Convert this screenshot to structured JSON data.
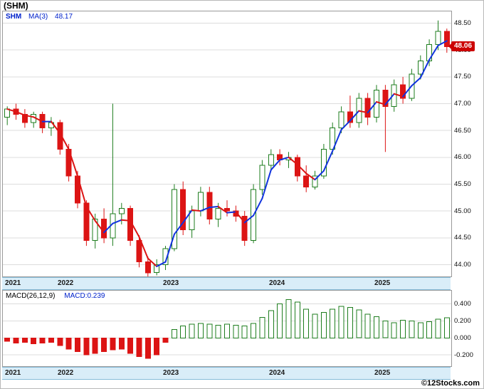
{
  "chart_data": {
    "type": "candlestick",
    "title": "(SHM)",
    "symbol": "SHM",
    "watermark": "©12Stocks.com",
    "x": {
      "interval": "month",
      "start": "2021-07",
      "years": [
        "2021",
        "2022",
        "2023",
        "2024",
        "2025"
      ],
      "year_start_indices": [
        0,
        6,
        18,
        30,
        42
      ]
    },
    "price_panel": {
      "legend": {
        "symbol": "SHM",
        "ma_label": "MA(3)",
        "ma_value": "48.17"
      },
      "price_tag": "48.06",
      "last_price": 48.06,
      "ma_window": 3,
      "y_ticks": [
        "48.50",
        "48.00",
        "47.50",
        "47.00",
        "46.50",
        "46.00",
        "45.50",
        "45.00",
        "44.50",
        "44.00"
      ],
      "ylim": [
        43.78,
        48.72
      ],
      "candles_ohlc": [
        [
          46.75,
          46.95,
          46.6,
          46.9
        ],
        [
          46.9,
          47.0,
          46.7,
          46.8
        ],
        [
          46.8,
          46.9,
          46.55,
          46.65
        ],
        [
          46.65,
          46.85,
          46.55,
          46.8
        ],
        [
          46.8,
          46.85,
          46.45,
          46.55
        ],
        [
          46.55,
          46.75,
          46.4,
          46.65
        ],
        [
          46.65,
          46.7,
          46.05,
          46.15
        ],
        [
          46.15,
          46.25,
          45.55,
          45.65
        ],
        [
          45.65,
          45.75,
          45.05,
          45.15
        ],
        [
          45.15,
          45.2,
          44.35,
          44.45
        ],
        [
          44.45,
          44.95,
          44.3,
          44.85
        ],
        [
          44.85,
          45.05,
          44.4,
          44.5
        ],
        [
          44.5,
          47.0,
          44.35,
          44.95
        ],
        [
          44.95,
          45.15,
          44.75,
          45.05
        ],
        [
          45.05,
          45.1,
          44.35,
          44.45
        ],
        [
          44.45,
          44.55,
          43.95,
          44.05
        ],
        [
          44.05,
          44.15,
          43.75,
          43.85
        ],
        [
          43.85,
          44.1,
          43.8,
          44.0
        ],
        [
          44.0,
          44.35,
          43.9,
          44.3
        ],
        [
          44.3,
          45.5,
          44.25,
          45.4
        ],
        [
          45.4,
          45.55,
          44.55,
          44.65
        ],
        [
          44.65,
          45.1,
          44.5,
          45.0
        ],
        [
          45.0,
          45.45,
          44.9,
          45.35
        ],
        [
          45.35,
          45.45,
          44.75,
          44.85
        ],
        [
          44.85,
          45.15,
          44.7,
          45.05
        ],
        [
          45.05,
          45.2,
          44.9,
          45.0
        ],
        [
          45.0,
          45.1,
          44.8,
          44.9
        ],
        [
          44.9,
          45.0,
          44.35,
          44.45
        ],
        [
          44.45,
          45.5,
          44.4,
          45.4
        ],
        [
          45.4,
          45.95,
          45.3,
          45.85
        ],
        [
          45.85,
          46.15,
          45.75,
          46.05
        ],
        [
          46.05,
          46.15,
          45.85,
          45.95
        ],
        [
          45.95,
          46.1,
          45.8,
          46.0
        ],
        [
          46.0,
          46.05,
          45.55,
          45.65
        ],
        [
          45.65,
          45.85,
          45.35,
          45.45
        ],
        [
          45.45,
          45.75,
          45.4,
          45.65
        ],
        [
          45.65,
          46.25,
          45.6,
          46.15
        ],
        [
          46.15,
          46.65,
          46.05,
          46.55
        ],
        [
          46.55,
          46.95,
          46.45,
          46.85
        ],
        [
          46.85,
          47.15,
          46.55,
          46.65
        ],
        [
          46.65,
          47.2,
          46.55,
          47.1
        ],
        [
          47.1,
          47.2,
          46.6,
          46.75
        ],
        [
          46.75,
          47.35,
          46.65,
          47.25
        ],
        [
          47.25,
          47.35,
          46.1,
          46.95
        ],
        [
          46.95,
          47.45,
          46.85,
          47.35
        ],
        [
          47.35,
          47.5,
          47.0,
          47.1
        ],
        [
          47.1,
          47.65,
          47.05,
          47.55
        ],
        [
          47.55,
          47.9,
          47.45,
          47.8
        ],
        [
          47.8,
          48.2,
          47.7,
          48.1
        ],
        [
          48.1,
          48.55,
          48.0,
          48.35
        ],
        [
          48.35,
          48.4,
          47.95,
          48.06
        ]
      ]
    },
    "macd_panel": {
      "legend_label": "MACD(26,12,9)",
      "legend_value": "MACD:0.239",
      "last_value": 0.239,
      "y_ticks": [
        "0.400",
        "0.200",
        "0.000",
        "-0.200"
      ],
      "ylim": [
        -0.333,
        0.556
      ],
      "histogram": [
        -0.04,
        -0.06,
        -0.05,
        -0.07,
        -0.06,
        -0.05,
        -0.09,
        -0.13,
        -0.16,
        -0.2,
        -0.18,
        -0.16,
        -0.14,
        -0.13,
        -0.18,
        -0.22,
        -0.24,
        -0.2,
        -0.05,
        0.1,
        0.14,
        0.16,
        0.17,
        0.16,
        0.15,
        0.16,
        0.15,
        0.14,
        0.17,
        0.24,
        0.32,
        0.4,
        0.45,
        0.42,
        0.34,
        0.28,
        0.3,
        0.34,
        0.37,
        0.36,
        0.33,
        0.28,
        0.25,
        0.2,
        0.18,
        0.21,
        0.2,
        0.18,
        0.19,
        0.22,
        0.239
      ]
    }
  },
  "colors": {
    "up": "#1e7d1e",
    "up_fill": "#ffffff",
    "down": "#dc1414",
    "ma_up": "#1133dd",
    "ma_down": "#dc1414",
    "grid": "#dcdcdc",
    "plot_border": "#9a9a9a",
    "band_bg": "#d9edf8",
    "band_border": "#86bcd9",
    "tag_bg": "#cc0000",
    "tag_text": "#ffffff",
    "legend_blue": "#0022cc"
  }
}
